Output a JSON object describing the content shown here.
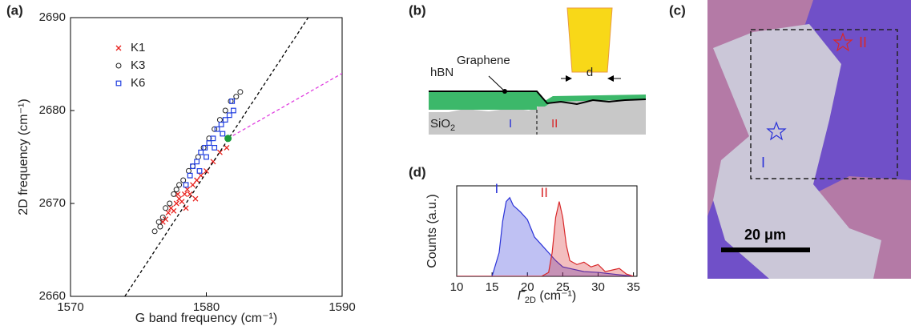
{
  "panel_labels": [
    "(a)",
    "(b)",
    "(c)",
    "(d)"
  ],
  "chart_data": [
    {
      "type": "scatter",
      "x_label": "G band frequency (cm⁻¹)",
      "y_label": "2D frequency (cm⁻¹)",
      "xlim": [
        1570,
        1590
      ],
      "xticks": [
        1570,
        1580,
        1590
      ],
      "ylim": [
        2660,
        2690
      ],
      "yticks": [
        2660,
        2670,
        2680,
        2690
      ],
      "legend": "upper left",
      "series": [
        {
          "name": "K1",
          "color": "#e8201c",
          "marker": "x",
          "x": [
            1576.8,
            1577.0,
            1577.2,
            1577.4,
            1577.6,
            1577.8,
            1578.0,
            1578.2,
            1578.4,
            1578.6,
            1578.8,
            1579.0,
            1579.3,
            1579.6,
            1580.0,
            1580.5,
            1581.0,
            1579.2,
            1578.5,
            1577.9,
            1581.5
          ],
          "values": [
            2668,
            2668.3,
            2669,
            2669.5,
            2669.2,
            2670,
            2670.5,
            2670.2,
            2671,
            2671.5,
            2671,
            2672,
            2672.5,
            2673,
            2673.5,
            2674.5,
            2675.5,
            2670.5,
            2669.5,
            2671,
            2676
          ]
        },
        {
          "name": "K3",
          "color": "#222222",
          "marker": "o",
          "x": [
            1576.2,
            1576.5,
            1576.8,
            1577.0,
            1577.3,
            1577.6,
            1578.0,
            1578.3,
            1578.7,
            1579.0,
            1579.4,
            1579.8,
            1580.2,
            1580.6,
            1581.0,
            1581.4,
            1581.8,
            1582.2,
            1582.5,
            1576.6,
            1577.8
          ],
          "values": [
            2667,
            2668,
            2668.5,
            2669.5,
            2670,
            2671,
            2672,
            2672.5,
            2673.5,
            2674,
            2675,
            2676,
            2677,
            2678,
            2679,
            2680,
            2681,
            2681.5,
            2682,
            2667.5,
            2671.5
          ]
        },
        {
          "name": "K6",
          "color": "#1f3de0",
          "marker": "s",
          "x": [
            1578.5,
            1578.8,
            1579.0,
            1579.3,
            1579.6,
            1579.9,
            1580.2,
            1580.5,
            1580.8,
            1581.1,
            1581.4,
            1581.7,
            1582.0,
            1579.5,
            1580.0,
            1580.6,
            1581.2,
            1581.9
          ],
          "values": [
            2672,
            2673,
            2674,
            2674.5,
            2675.5,
            2676,
            2676.5,
            2677,
            2678,
            2678.5,
            2679,
            2679.5,
            2680,
            2673.5,
            2675,
            2676,
            2677.5,
            2681
          ]
        }
      ],
      "lines": [
        {
          "color": "#000000",
          "x": [
            1574,
            1587.5
          ],
          "values": [
            2660,
            2690
          ]
        },
        {
          "color": "#e040e0",
          "x": [
            1581.6,
            1590
          ],
          "values": [
            2677,
            2684
          ]
        }
      ],
      "point": {
        "color": "#1a9a3a",
        "x": 1581.6,
        "value": 2677
      }
    },
    {
      "type": "area",
      "x_label": {
        "symbol": "Γ",
        "subscript": "2D",
        "unit": " (cm⁻¹)"
      },
      "y_label": "Counts (a.u.)",
      "xlim": [
        10,
        35.5
      ],
      "xticks": [
        10,
        15,
        20,
        25,
        30,
        35
      ],
      "ylim": [
        0,
        1.15
      ],
      "series": [
        {
          "name": "I",
          "color": "#2a32d8",
          "x": [
            10,
            15,
            16,
            16.5,
            17,
            17.5,
            18,
            19,
            20,
            21,
            22,
            23,
            24,
            25,
            26,
            28,
            30,
            32,
            35
          ],
          "values": [
            0,
            0,
            0.3,
            0.7,
            0.95,
            1.0,
            0.9,
            0.82,
            0.72,
            0.5,
            0.4,
            0.3,
            0.2,
            0.12,
            0.1,
            0.06,
            0.05,
            0.03,
            0
          ]
        },
        {
          "name": "II",
          "color": "#d8282a",
          "x": [
            10,
            22,
            23,
            23.5,
            24,
            24.5,
            25,
            25.5,
            26,
            27,
            28,
            29,
            30,
            31,
            32,
            33,
            34,
            35
          ],
          "values": [
            0,
            0,
            0.05,
            0.3,
            0.75,
            0.95,
            0.75,
            0.4,
            0.2,
            0.15,
            0.18,
            0.12,
            0.15,
            0.06,
            0.08,
            0.1,
            0.03,
            0
          ]
        }
      ]
    }
  ],
  "diagram": {
    "top_layer": "hBN",
    "sheet": "Graphene",
    "gap": "d",
    "substrate": {
      "text": "SiO",
      "subscript": "2"
    },
    "region_1": "I",
    "region_2": "II"
  },
  "micrograph": {
    "scale_bar": "20 μm",
    "region_1": "I",
    "region_2": "II"
  }
}
